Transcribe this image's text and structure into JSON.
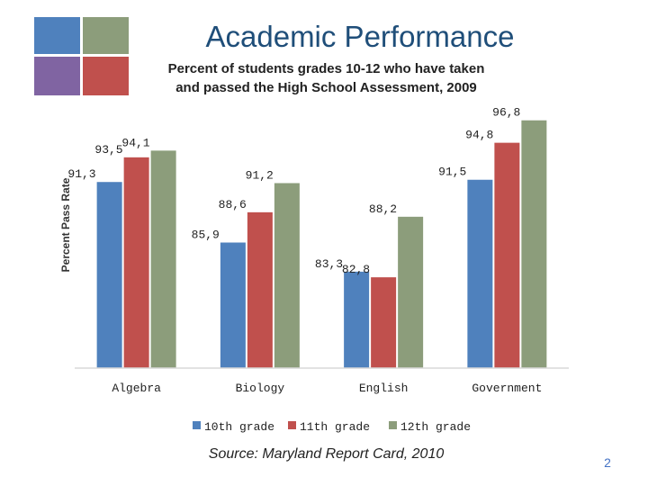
{
  "slide": {
    "title": "Academic Performance",
    "page_number": "2",
    "source": "Source: Maryland Report Card, 2010",
    "deco_colors": [
      "#4f81bd",
      "#8c9d7b",
      "#8064a2",
      "#c0504d"
    ]
  },
  "chart_data": {
    "type": "bar",
    "title": "",
    "subtitle_lines": [
      "Percent of students grades 10-12 who have taken",
      "and passed the High School Assessment, 2009"
    ],
    "xlabel": "",
    "ylabel": "Percent Pass Rate",
    "categories": [
      "Algebra",
      "Biology",
      "English",
      "Government"
    ],
    "series": [
      {
        "name": "10th grade",
        "color": "#4f81bd",
        "values": [
          91.3,
          85.9,
          83.3,
          91.5
        ],
        "labels": [
          "91,3",
          "85,9",
          "83,3",
          "91,5"
        ]
      },
      {
        "name": "11th grade",
        "color": "#c0504d",
        "values": [
          93.5,
          88.6,
          82.8,
          94.8
        ],
        "labels": [
          "93,5",
          "88,6",
          "82,8",
          "94,8"
        ]
      },
      {
        "name": "12th grade",
        "color": "#8c9d7b",
        "values": [
          94.1,
          91.2,
          88.2,
          96.8
        ],
        "labels": [
          "94,1",
          "91,2",
          "88,2",
          "96,8"
        ]
      }
    ],
    "ylim": [
      74.7,
      97.5
    ],
    "grid": false,
    "legend_position": "bottom"
  }
}
